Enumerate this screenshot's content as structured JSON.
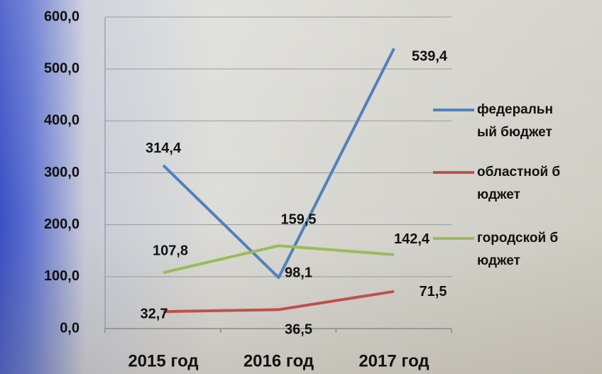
{
  "chart_data": {
    "type": "line",
    "categories": [
      "2015 год",
      "2016 год",
      "2017 год"
    ],
    "series": [
      {
        "name": "федеральный бюджет",
        "color": "#4f81bd",
        "values": [
          314.4,
          98.1,
          539.4
        ],
        "value_labels": [
          "314,4",
          "98,1",
          "539,4"
        ]
      },
      {
        "name": "областной бюджет",
        "color": "#c0504d",
        "values": [
          32.7,
          36.5,
          71.5
        ],
        "value_labels": [
          "32,7",
          "36,5",
          "71,5"
        ]
      },
      {
        "name": "городской бюджет",
        "color": "#9bbb59",
        "values": [
          107.8,
          159.5,
          142.4
        ],
        "value_labels": [
          "107,8",
          "159,5",
          "142,4"
        ]
      }
    ],
    "ylim": [
      0,
      600
    ],
    "yticks": [
      {
        "value": 0,
        "label": "0,0"
      },
      {
        "value": 100,
        "label": "100,0"
      },
      {
        "value": 200,
        "label": "200,0"
      },
      {
        "value": 300,
        "label": "300,0"
      },
      {
        "value": 400,
        "label": "400,0"
      },
      {
        "value": 500,
        "label": "500,0"
      },
      {
        "value": 600,
        "label": "600,0"
      }
    ],
    "grid": true,
    "legend": "right"
  }
}
